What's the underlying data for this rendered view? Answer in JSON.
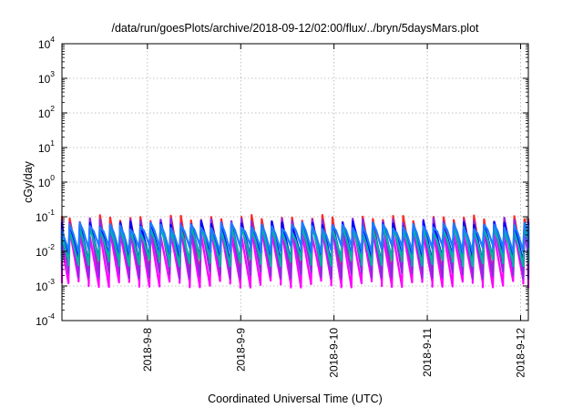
{
  "chart_data": {
    "type": "line",
    "title": "/data/run/goesPlots/archive/2018-09-12/02:00/flux/../bryn/5daysMars.plot",
    "xlabel": "Coordinated Universal Time (UTC)",
    "ylabel": "cGy/day",
    "yscale": "log",
    "ylim": [
      0.0001,
      10000
    ],
    "y_ticks": [
      {
        "base": "10",
        "exp": "-4",
        "value": 0.0001
      },
      {
        "base": "10",
        "exp": "-3",
        "value": 0.001
      },
      {
        "base": "10",
        "exp": "-2",
        "value": 0.01
      },
      {
        "base": "10",
        "exp": "-1",
        "value": 0.1
      },
      {
        "base": "10",
        "exp": "0",
        "value": 1
      },
      {
        "base": "10",
        "exp": "1",
        "value": 10
      },
      {
        "base": "10",
        "exp": "2",
        "value": 100
      },
      {
        "base": "10",
        "exp": "3",
        "value": 1000
      },
      {
        "base": "10",
        "exp": "4",
        "value": 10000
      }
    ],
    "x_start": "2018-09-07T02:00",
    "x_end": "2018-09-12T02:00",
    "x_ticks": [
      {
        "label": "2018-9-8",
        "value": "2018-09-08T00:00"
      },
      {
        "label": "2018-9-9",
        "value": "2018-09-09T00:00"
      },
      {
        "label": "2018-9-10",
        "value": "2018-09-10T00:00"
      },
      {
        "label": "2018-9-11",
        "value": "2018-09-11T00:00"
      },
      {
        "label": "2018-9-12",
        "value": "2018-09-12T00:00"
      }
    ],
    "grid": true,
    "period_hours": 2.6,
    "series": [
      {
        "color": "#ff00ff",
        "peak": 0.035,
        "trough": 0.0012
      },
      {
        "color": "#ff2a2a",
        "peak": 0.09,
        "trough": 0.003
      },
      {
        "color": "#8a2be2",
        "peak": 0.075,
        "trough": 0.0022
      },
      {
        "color": "#0000ff",
        "peak": 0.06,
        "trough": 0.006
      },
      {
        "color": "#00b5a0",
        "peak": 0.045,
        "trough": 0.005
      },
      {
        "color": "#1e7bff",
        "peak": 0.055,
        "trough": 0.012
      }
    ]
  }
}
